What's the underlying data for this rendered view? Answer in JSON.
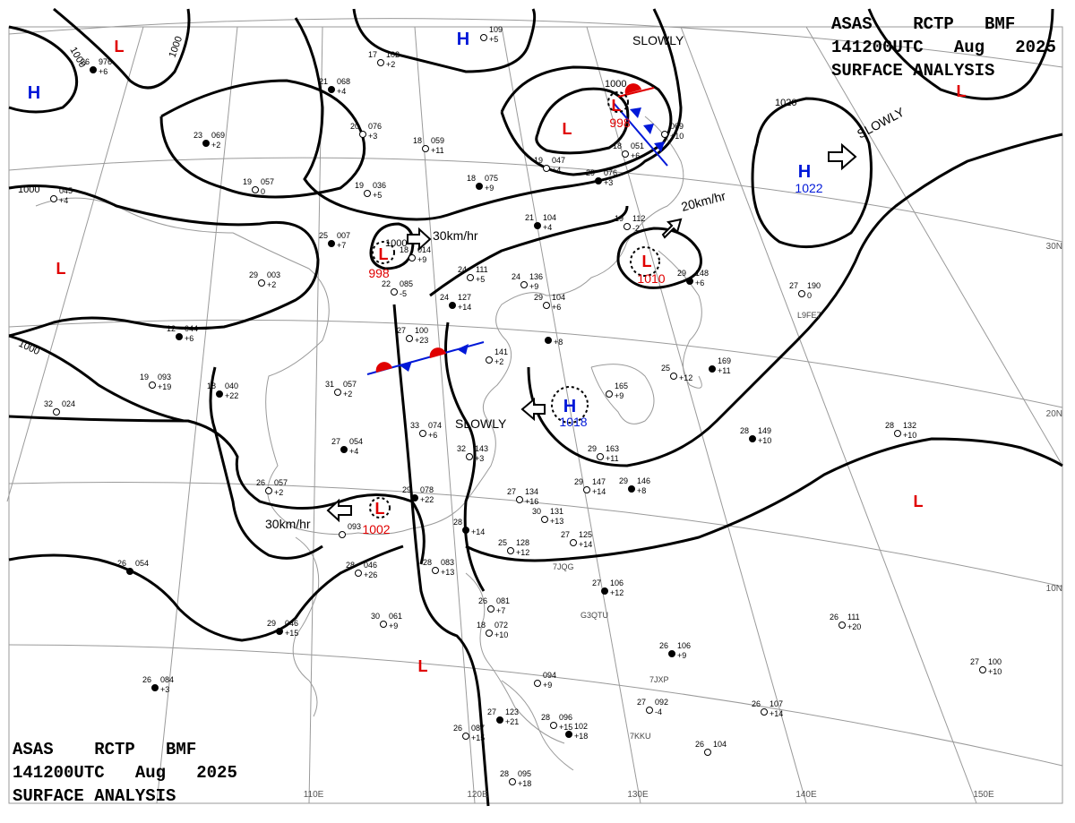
{
  "header": {
    "line1": "ASAS    RCTP   BMF",
    "line2": "141200UTC   Aug   2025",
    "line3": "SURFACE ANALYSIS"
  },
  "colors": {
    "low": "#e00000",
    "high": "#0018d8",
    "isobar": "#000000",
    "grid": "#9a9a9a",
    "coast": "#9a9a9a"
  },
  "grid_labels": {
    "lon": [
      "110E",
      "120E",
      "130E",
      "140E",
      "150E"
    ],
    "lat": [
      "30N",
      "20N",
      "10N"
    ]
  },
  "isobar_labels": [
    "1000",
    "1000",
    "1000",
    "1000",
    "1000",
    "1000",
    "1020"
  ],
  "pressure_centers": [
    {
      "kind": "L",
      "value": ""
    },
    {
      "kind": "H",
      "value": ""
    },
    {
      "kind": "H",
      "value": ""
    },
    {
      "kind": "L",
      "value": "998"
    },
    {
      "kind": "L",
      "value": ""
    },
    {
      "kind": "L",
      "value": ""
    },
    {
      "kind": "H",
      "value": "1022"
    },
    {
      "kind": "L",
      "value": "1010"
    },
    {
      "kind": "L",
      "value": "998"
    },
    {
      "kind": "L",
      "value": ""
    },
    {
      "kind": "H",
      "value": "1018"
    },
    {
      "kind": "L",
      "value": "1002"
    },
    {
      "kind": "L",
      "value": ""
    },
    {
      "kind": "L",
      "value": ""
    }
  ],
  "motion_labels": [
    "SLOWLY",
    "SLOWLY",
    "30km/hr",
    "20km/hr",
    "SLOWLY",
    "30km/hr"
  ],
  "station_plots": [
    {
      "t": "26",
      "p": "976",
      "tend": "+6"
    },
    {
      "t": "17",
      "p": "102",
      "tend": "+2"
    },
    {
      "t": "",
      "p": "109",
      "tend": "+5"
    },
    {
      "t": "21",
      "p": "068",
      "tend": "+4"
    },
    {
      "t": "20",
      "p": "076",
      "tend": "+3"
    },
    {
      "t": "18",
      "p": "059",
      "tend": "+11"
    },
    {
      "t": "23",
      "p": "069",
      "tend": "+2"
    },
    {
      "t": "19",
      "p": "057",
      "tend": "0"
    },
    {
      "t": "19",
      "p": "036",
      "tend": "+5"
    },
    {
      "t": "18",
      "p": "075",
      "tend": "+9"
    },
    {
      "t": "19",
      "p": "047",
      "tend": "+4"
    },
    {
      "t": "18",
      "p": "051",
      "tend": "+6"
    },
    {
      "t": "29",
      "p": "076",
      "tend": "+3"
    },
    {
      "t": "",
      "p": "069",
      "tend": "+10"
    },
    {
      "t": "",
      "p": "045",
      "tend": "+4"
    },
    {
      "t": "25",
      "p": "007",
      "tend": "+7"
    },
    {
      "t": "18",
      "p": "014",
      "tend": "+9"
    },
    {
      "t": "22",
      "p": "085",
      "tend": "-5"
    },
    {
      "t": "21",
      "p": "104",
      "tend": "+4"
    },
    {
      "t": "19",
      "p": "112",
      "tend": "-2"
    },
    {
      "t": "24",
      "p": "111",
      "tend": "+5"
    },
    {
      "t": "24",
      "p": "127",
      "tend": "+14"
    },
    {
      "t": "24",
      "p": "136",
      "tend": "+9"
    },
    {
      "t": "29",
      "p": "104",
      "tend": "+6"
    },
    {
      "t": "29",
      "p": "148",
      "tend": "+6"
    },
    {
      "t": "27",
      "p": "190",
      "tend": "0"
    },
    {
      "t": "29",
      "p": "003",
      "tend": "+2"
    },
    {
      "t": "12",
      "p": "044",
      "tend": "+6"
    },
    {
      "t": "27",
      "p": "100",
      "tend": "+23"
    },
    {
      "t": "19",
      "p": "093",
      "tend": "+19"
    },
    {
      "t": "18",
      "p": "040",
      "tend": "+22"
    },
    {
      "t": "31",
      "p": "057",
      "tend": "+2"
    },
    {
      "t": "",
      "p": "141",
      "tend": "+2"
    },
    {
      "t": "",
      "p": "",
      "tend": "+8"
    },
    {
      "t": "",
      "p": "165",
      "tend": "+9"
    },
    {
      "t": "25",
      "p": "",
      "tend": "+12"
    },
    {
      "t": "",
      "p": "169",
      "tend": "+11"
    },
    {
      "t": "32",
      "p": "024",
      "tend": ""
    },
    {
      "t": "33",
      "p": "074",
      "tend": "+6"
    },
    {
      "t": "27",
      "p": "054",
      "tend": "+4"
    },
    {
      "t": "32",
      "p": "143",
      "tend": "+3"
    },
    {
      "t": "29",
      "p": "163",
      "tend": "+11"
    },
    {
      "t": "28",
      "p": "149",
      "tend": "+10"
    },
    {
      "t": "28",
      "p": "132",
      "tend": "+10"
    },
    {
      "t": "26",
      "p": "057",
      "tend": "+2"
    },
    {
      "t": "29",
      "p": "078",
      "tend": "+22"
    },
    {
      "t": "27",
      "p": "134",
      "tend": "+16"
    },
    {
      "t": "29",
      "p": "147",
      "tend": "+14"
    },
    {
      "t": "29",
      "p": "146",
      "tend": "+8"
    },
    {
      "t": "30",
      "p": "131",
      "tend": "+13"
    },
    {
      "t": "",
      "p": "093",
      "tend": ""
    },
    {
      "t": "28",
      "p": "",
      "tend": "+14"
    },
    {
      "t": "25",
      "p": "128",
      "tend": "+12"
    },
    {
      "t": "27",
      "p": "125",
      "tend": "+14"
    },
    {
      "t": "26",
      "p": "054",
      "tend": ""
    },
    {
      "t": "28",
      "p": "046",
      "tend": "+26"
    },
    {
      "t": "28",
      "p": "083",
      "tend": "+13"
    },
    {
      "t": "27",
      "p": "106",
      "tend": "+12"
    },
    {
      "t": "26",
      "p": "081",
      "tend": "+7"
    },
    {
      "t": "18",
      "p": "072",
      "tend": "+10"
    },
    {
      "t": "29",
      "p": "046",
      "tend": "+15"
    },
    {
      "t": "30",
      "p": "061",
      "tend": "+9"
    },
    {
      "t": "26",
      "p": "111",
      "tend": "+20"
    },
    {
      "t": "26",
      "p": "106",
      "tend": "+9"
    },
    {
      "t": "27",
      "p": "100",
      "tend": "+10"
    },
    {
      "t": "",
      "p": "094",
      "tend": "+9"
    },
    {
      "t": "26",
      "p": "084",
      "tend": "+3"
    },
    {
      "t": "27",
      "p": "092",
      "tend": "-4"
    },
    {
      "t": "26",
      "p": "107",
      "tend": "+14"
    },
    {
      "t": "27",
      "p": "123",
      "tend": "+21"
    },
    {
      "t": "26",
      "p": "087",
      "tend": "+15"
    },
    {
      "t": "28",
      "p": "096",
      "tend": "+15"
    },
    {
      "t": "",
      "p": "102",
      "tend": "+18"
    },
    {
      "t": "26",
      "p": "104",
      "tend": ""
    },
    {
      "t": "28",
      "p": "095",
      "tend": "+18"
    }
  ],
  "ship_ids": [
    "L9FE7",
    "7JQG",
    "G3QTU",
    "7JXP",
    "7KKU"
  ]
}
